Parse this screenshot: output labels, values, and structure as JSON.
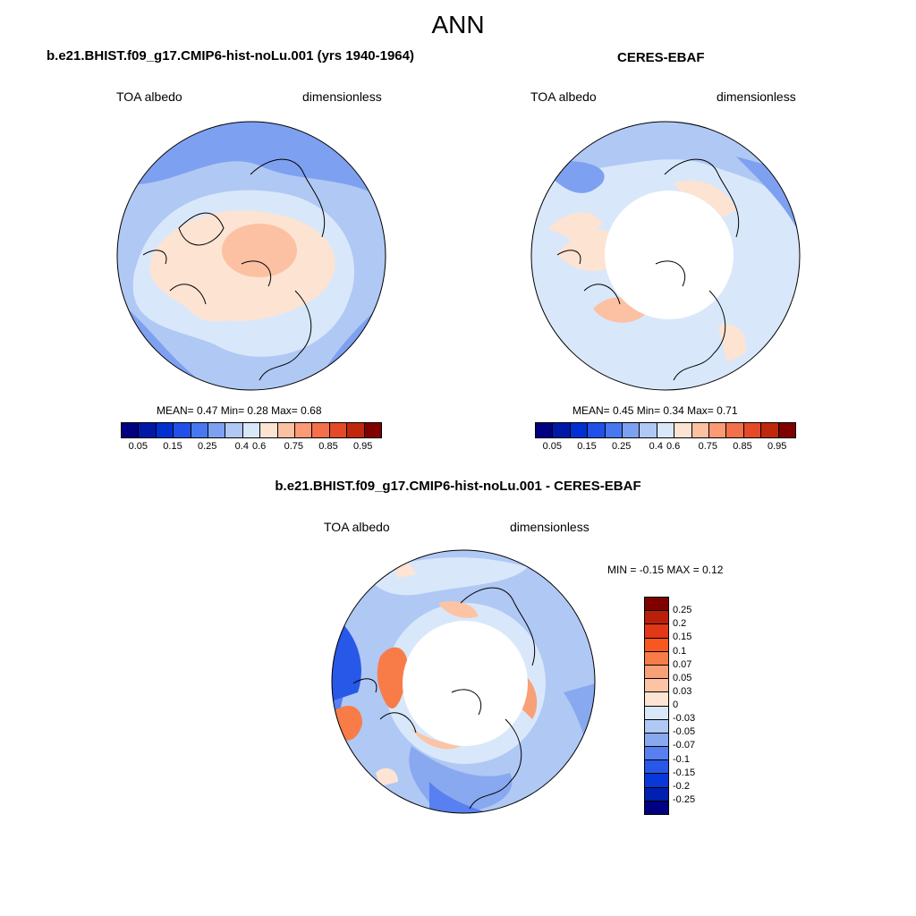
{
  "title": "ANN",
  "panels": {
    "model": {
      "title": "b.e21.BHIST.f09_g17.CMIP6-hist-noLu.001 (yrs 1940-1964)",
      "left_label": "TOA albedo",
      "right_label": "dimensionless",
      "stats": {
        "mean_label": "MEAN=",
        "mean": "0.47",
        "min_label": "Min=",
        "min": "0.28",
        "max_label": "Max=",
        "max": "0.68"
      }
    },
    "obs": {
      "title": "CERES-EBAF",
      "left_label": "TOA albedo",
      "right_label": "dimensionless",
      "stats": {
        "mean_label": "MEAN=",
        "mean": "0.45",
        "min_label": "Min=",
        "min": "0.34",
        "max_label": "Max=",
        "max": "0.71"
      }
    },
    "diff": {
      "title": "b.e21.BHIST.f09_g17.CMIP6-hist-noLu.001 - CERES-EBAF",
      "left_label": "TOA albedo",
      "right_label": "dimensionless",
      "minmax": {
        "min_label": "MIN =",
        "min": "-0.15",
        "max_label": "MAX =",
        "max": "0.12"
      }
    }
  },
  "colorbar_abs": {
    "colors": [
      "#000080",
      "#0018a8",
      "#0030d0",
      "#2050e8",
      "#4878f0",
      "#7ea0f0",
      "#b0c8f4",
      "#d8e8fa",
      "#fde3d2",
      "#fcc0a2",
      "#fb9a74",
      "#f4704a",
      "#e44a28",
      "#c0280c",
      "#800000"
    ],
    "ticks": [
      "0.05",
      "0.15",
      "0.25",
      "0.4",
      "0.6",
      "0.75",
      "0.85",
      "0.95"
    ]
  },
  "colorbar_diff": {
    "colors": [
      "#800000",
      "#b8200a",
      "#e03818",
      "#f85820",
      "#f87c48",
      "#f8a078",
      "#fcc4a4",
      "#fde4d4",
      "#d8e8fa",
      "#b0c8f4",
      "#88a8f0",
      "#5880f0",
      "#2858e8",
      "#0838d8",
      "#0020b0",
      "#000080"
    ],
    "ticks": [
      "0.25",
      "0.2",
      "0.15",
      "0.1",
      "0.07",
      "0.05",
      "0.03",
      "0",
      "-0.03",
      "-0.05",
      "-0.07",
      "-0.1",
      "-0.15",
      "-0.2",
      "-0.25"
    ]
  }
}
